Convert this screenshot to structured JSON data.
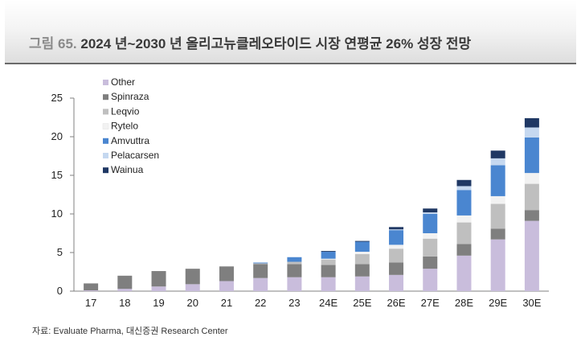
{
  "title": {
    "prefix": "그림 65.",
    "text": "2024 년~2030 년 올리고뉴클레오타이드 시장 연평균 26% 성장 전망"
  },
  "source": "자료: Evaluate Pharma, 대신증권 Research Center",
  "chart_data": {
    "type": "bar",
    "stacked": true,
    "title": "2024 년~2030 년 올리고뉴클레오타이드 시장 연평균 26% 성장 전망",
    "xlabel": "",
    "ylabel": "",
    "ylim": [
      0,
      25
    ],
    "yticks": [
      0,
      5,
      10,
      15,
      20,
      25
    ],
    "grid": false,
    "legend_position": "top-left",
    "categories": [
      "17",
      "18",
      "19",
      "20",
      "21",
      "22",
      "23",
      "24E",
      "25E",
      "26E",
      "27E",
      "28E",
      "29E",
      "30E"
    ],
    "series": [
      {
        "name": "Other",
        "color": "#c9bddc",
        "values": [
          0.1,
          0.3,
          0.6,
          0.9,
          1.3,
          1.7,
          1.8,
          1.8,
          1.9,
          2.1,
          2.9,
          4.6,
          6.7,
          9.1
        ]
      },
      {
        "name": "Spinraza",
        "color": "#7f7f7f",
        "values": [
          0.9,
          1.7,
          2.0,
          2.0,
          1.9,
          1.8,
          1.7,
          1.6,
          1.6,
          1.6,
          1.6,
          1.5,
          1.4,
          1.4
        ]
      },
      {
        "name": "Leqvio",
        "color": "#bfbfbf",
        "values": [
          0.0,
          0.0,
          0.0,
          0.0,
          0.0,
          0.1,
          0.3,
          0.7,
          1.3,
          1.8,
          2.3,
          2.8,
          3.2,
          3.4
        ]
      },
      {
        "name": "Rytelo",
        "color": "#f2f2f2",
        "values": [
          0.0,
          0.0,
          0.0,
          0.0,
          0.0,
          0.0,
          0.0,
          0.1,
          0.3,
          0.5,
          0.7,
          0.9,
          1.0,
          1.4
        ]
      },
      {
        "name": "Amvuttra",
        "color": "#4a86d0",
        "values": [
          0.0,
          0.0,
          0.0,
          0.0,
          0.0,
          0.1,
          0.6,
          0.9,
          1.3,
          1.9,
          2.5,
          3.3,
          4.0,
          4.6
        ]
      },
      {
        "name": "Pelacarsen",
        "color": "#c5d8f0",
        "values": [
          0.0,
          0.0,
          0.0,
          0.0,
          0.0,
          0.0,
          0.0,
          0.0,
          0.0,
          0.1,
          0.2,
          0.5,
          0.9,
          1.3
        ]
      },
      {
        "name": "Wainua",
        "color": "#1f3864",
        "values": [
          0.0,
          0.0,
          0.0,
          0.0,
          0.0,
          0.0,
          0.0,
          0.1,
          0.1,
          0.3,
          0.5,
          0.8,
          1.0,
          1.2
        ]
      }
    ]
  }
}
